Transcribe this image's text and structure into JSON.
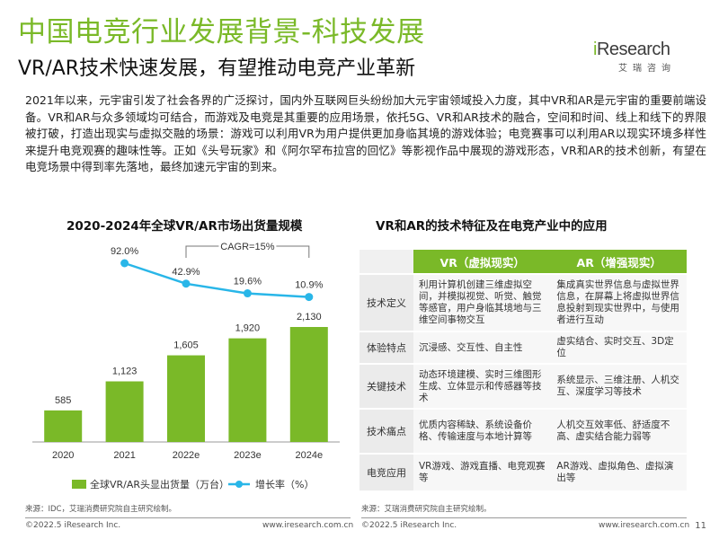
{
  "header": {
    "title": "中国电竞行业发展背景-科技发展",
    "subtitle": "VR/AR技术快速发展，有望推动电竞产业革新"
  },
  "logo": {
    "text_i": "i",
    "text_rest": "Research",
    "sub": "艾瑞咨询"
  },
  "intro": "2021年以来，元宇宙引发了社会各界的广泛探讨，国内外互联网巨头纷纷加大元宇宙领域投入力度，其中VR和AR是元宇宙的重要前端设备。VR和AR与众多领域均可结合，而游戏及电竞是其重要的应用场景，依托5G、VR和AR技术的融合，空间和时间、线上和线下的界限被打破，打造出现实与虚拟交融的场景：游戏可以利用VR为用户提供更加身临其境的游戏体验；电竞赛事可以利用AR以现实环境多样性来提升电竞观赛的趣味性等。正如《头号玩家》和《阿尔罕布拉宫的回忆》等影视作品中展现的游戏形态，VR和AR的技术创新，有望在电竞场景中得到率先落地，最终加速元宇宙的到来。",
  "chart_panel": {
    "title": "2020-2024年全球VR/AR市场出货量规模",
    "cagr": "CAGR=15%",
    "legend_bar": "全球VR/AR头显出货量（万台）",
    "legend_line": "增长率（%）",
    "source": "来源：IDC，艾瑞消费研究院自主研究绘制。"
  },
  "chart_data": {
    "type": "bar",
    "title": "2020-2024年全球VR/AR市场出货量规模",
    "categories": [
      "2020",
      "2021",
      "2022e",
      "2023e",
      "2024e"
    ],
    "series": [
      {
        "name": "全球VR/AR头显出货量（万台）",
        "type": "bar",
        "values": [
          585,
          1123,
          1605,
          1920,
          2130
        ],
        "labels": [
          "585",
          "1,123",
          "1,605",
          "1,920",
          "2,130"
        ]
      },
      {
        "name": "增长率（%）",
        "type": "line",
        "x": [
          "2021",
          "2022e",
          "2023e",
          "2024e"
        ],
        "values": [
          92.0,
          42.9,
          19.6,
          10.9
        ],
        "labels": [
          "92.0%",
          "42.9%",
          "19.6%",
          "10.9%"
        ]
      }
    ],
    "annotation": "CAGR=15%",
    "colors": {
      "bar": "#7ab928",
      "line": "#29b6e8"
    },
    "legend_position": "bottom"
  },
  "table_panel": {
    "title": "VR和AR的技术特征及在电竞产业中的应用",
    "col_vr": "VR（虚拟现实）",
    "col_ar": "AR（增强现实）",
    "rows": [
      {
        "head": "技术定义",
        "vr": "利用计算机创建三维虚拟空间，并模拟视觉、听觉、触觉等感官，用户身临其境地与三维空间事物交互",
        "ar": "集成真实世界信息与虚拟世界信息，在屏幕上将虚拟世界信息投射到现实世界中，与使用者进行互动"
      },
      {
        "head": "体验特点",
        "vr": "沉浸感、交互性、自主性",
        "ar": "虚实结合、实时交互、3D定位"
      },
      {
        "head": "关键技术",
        "vr": "动态环境建模、实时三维图形生成、立体显示和传感器等技术",
        "ar": "系统显示、三维注册、人机交互、深度学习等技术"
      },
      {
        "head": "技术痛点",
        "vr": "优质内容稀缺、系统设备价格、传输速度与本地计算等",
        "ar": "人机交互效率低、舒适度不高、虚实结合能力弱等"
      },
      {
        "head": "电竞应用",
        "vr": "VR游戏、游戏直播、电竞观赛等",
        "ar": "AR游戏、虚拟角色、虚拟演出等"
      }
    ],
    "source": "来源：艾瑞消费研究院自主研究绘制。"
  },
  "footer": {
    "left_copyright": "©2022.5 iResearch Inc.",
    "left_url": "www.iresearch.com.cn",
    "right_copyright": "©2022.5 iResearch Inc.",
    "right_url": "www.iresearch.com.cn",
    "page": "11"
  }
}
